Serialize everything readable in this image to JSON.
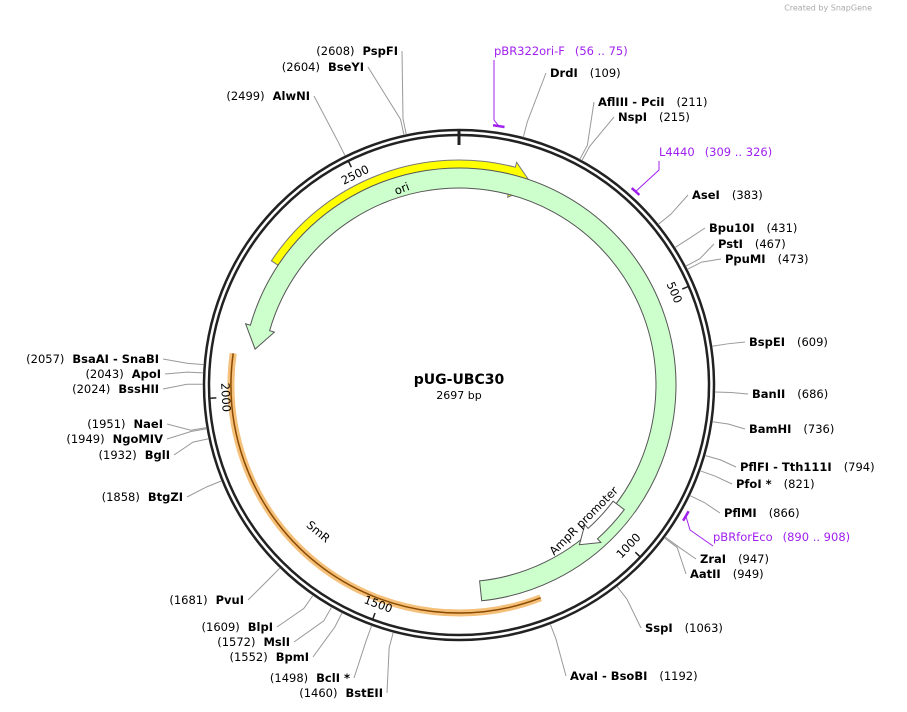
{
  "watermark": "Created by SnapGene",
  "map": {
    "title": "pUG-UBC30",
    "length": "2697 bp",
    "ticks": [
      500,
      1000,
      1500,
      2000,
      2500
    ]
  },
  "features": [
    {
      "name": "ori"
    },
    {
      "name": "SmR"
    },
    {
      "name": "AmpR promoter"
    }
  ],
  "primers": [
    {
      "name": "pBR322ori-F",
      "site": "(56 .. 75)"
    },
    {
      "name": "L4440",
      "site": "(309 .. 326)"
    },
    {
      "name": "pBRforEco",
      "site": "(890 .. 908)"
    }
  ],
  "enzymes": [
    {
      "name": "DrdI",
      "site": "(109)"
    },
    {
      "name": "AflIII  -  PciI",
      "site": "(211)"
    },
    {
      "name": "NspI",
      "site": "(215)"
    },
    {
      "name": "AseI",
      "site": "(383)"
    },
    {
      "name": "Bpu10I",
      "site": "(431)"
    },
    {
      "name": "PstI",
      "site": "(467)"
    },
    {
      "name": "PpuMI",
      "site": "(473)"
    },
    {
      "name": "BspEI",
      "site": "(609)"
    },
    {
      "name": "BanII",
      "site": "(686)"
    },
    {
      "name": "BamHI",
      "site": "(736)"
    },
    {
      "name": "PflFI  -  Tth111I",
      "site": "(794)"
    },
    {
      "name": "PfoI *",
      "site": "(821)"
    },
    {
      "name": "PflMI",
      "site": "(866)"
    },
    {
      "name": "ZraI",
      "site": "(947)"
    },
    {
      "name": "AatII",
      "site": "(949)"
    },
    {
      "name": "SspI",
      "site": "(1063)"
    },
    {
      "name": "AvaI  -  BsoBI",
      "site": "(1192)"
    },
    {
      "name": "PspFI",
      "site": "(2608)"
    },
    {
      "name": "BseYI",
      "site": "(2604)"
    },
    {
      "name": "AlwNI",
      "site": "(2499)"
    },
    {
      "name": "BsaAI  -  SnaBI",
      "site": "(2057)"
    },
    {
      "name": "ApoI",
      "site": "(2043)"
    },
    {
      "name": "BssHII",
      "site": "(2024)"
    },
    {
      "name": "NaeI",
      "site": "(1951)"
    },
    {
      "name": "NgoMIV",
      "site": "(1949)"
    },
    {
      "name": "BglI",
      "site": "(1932)"
    },
    {
      "name": "BtgZI",
      "site": "(1858)"
    },
    {
      "name": "PvuI",
      "site": "(1681)"
    },
    {
      "name": "BlpI",
      "site": "(1609)"
    },
    {
      "name": "MslI",
      "site": "(1572)"
    },
    {
      "name": "BpmI",
      "site": "(1552)"
    },
    {
      "name": "BclI *",
      "site": "(1498)"
    },
    {
      "name": "BstEII",
      "site": "(1460)"
    }
  ]
}
